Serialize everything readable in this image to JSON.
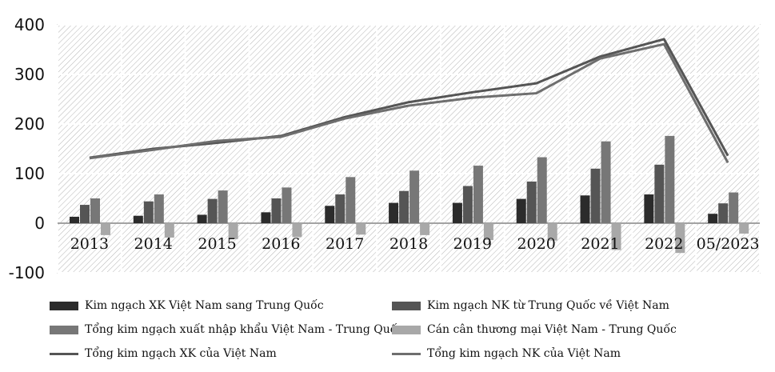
{
  "chart_data": {
    "type": "bar",
    "title": "",
    "xlabel": "",
    "ylabel": "",
    "ylim": [
      -100,
      400
    ],
    "yticks": [
      -100,
      0,
      100,
      200,
      300,
      400
    ],
    "grid": true,
    "legend_position": "bottom",
    "categories": [
      "2013",
      "2014",
      "2015",
      "2016",
      "2017",
      "2018",
      "2019",
      "2020",
      "2021",
      "2022",
      "05/2023"
    ],
    "series": [
      {
        "name": "Kim ngạch XK Việt Nam sang Trung Quốc",
        "kind": "bar",
        "color": "#2b2b2b",
        "values": [
          13,
          15,
          17,
          22,
          35,
          41,
          41,
          49,
          56,
          58,
          19
        ]
      },
      {
        "name": "Kim ngạch NK từ Trung Quốc về Việt Nam",
        "kind": "bar",
        "color": "#555555",
        "values": [
          37,
          44,
          49,
          50,
          58,
          65,
          75,
          84,
          110,
          118,
          40
        ]
      },
      {
        "name": "Tổng kim ngạch xuất nhập khẩu Việt Nam - Trung Quốc",
        "kind": "bar",
        "color": "#777777",
        "values": [
          50,
          58,
          66,
          72,
          93,
          106,
          116,
          133,
          165,
          176,
          62
        ]
      },
      {
        "name": "Cán cân thương mại Việt Nam - Trung Quốc",
        "kind": "bar",
        "color": "#a8a8a8",
        "values": [
          -24,
          -29,
          -32,
          -28,
          -23,
          -24,
          -34,
          -35,
          -54,
          -60,
          -21
        ]
      },
      {
        "name": "Tổng kim ngạch XK của Việt Nam",
        "kind": "line",
        "color": "#555555",
        "values": [
          132,
          150,
          162,
          176,
          214,
          244,
          264,
          282,
          336,
          371,
          136
        ]
      },
      {
        "name": "Tổng kim ngạch NK của Việt Nam",
        "kind": "line",
        "color": "#6e6e6e",
        "values": [
          131,
          148,
          166,
          174,
          211,
          237,
          253,
          262,
          332,
          361,
          122
        ]
      }
    ]
  }
}
